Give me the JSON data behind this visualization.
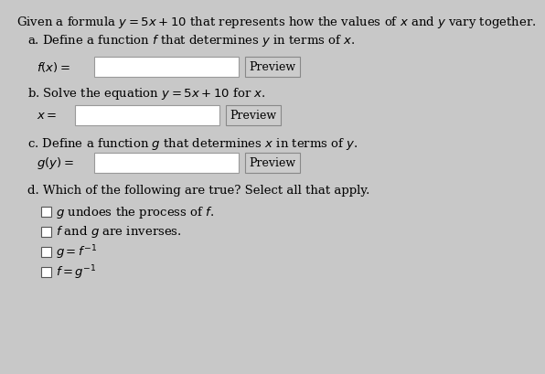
{
  "bg_color": "#c8c8c8",
  "content_bg": "#d4d4d4",
  "text_color": "#000000",
  "title": "Given a formula $y = 5x + 10$ that represents how the values of $x$ and $y$ vary together.",
  "part_a_label": "a. Define a function $f$ that determines $y$ in terms of $x$.",
  "part_a_expr": "$f(x) =$",
  "part_b_label": "b. Solve the equation $y = 5x + 10$ for $x$.",
  "part_b_expr": "$x =$",
  "part_c_label": "c. Define a function $g$ that determines $x$ in terms of $y$.",
  "part_c_expr": "$g(y) =$",
  "part_d_label": "d. Which of the following are true? Select all that apply.",
  "checkboxes": [
    "$g$ undoes the process of $f$.",
    "$f$ and $g$ are inverses.",
    "$g = f^{-1}$",
    "$f = g^{-1}$"
  ],
  "preview_label": "Preview",
  "input_box_color": "#ffffff",
  "input_box_border": "#999999",
  "preview_box_color": "#cccccc",
  "preview_box_border": "#888888",
  "checkbox_color": "#ffffff",
  "checkbox_border": "#555555",
  "font_size_title": 9.5,
  "font_size_body": 9.5,
  "font_size_small": 9.0
}
